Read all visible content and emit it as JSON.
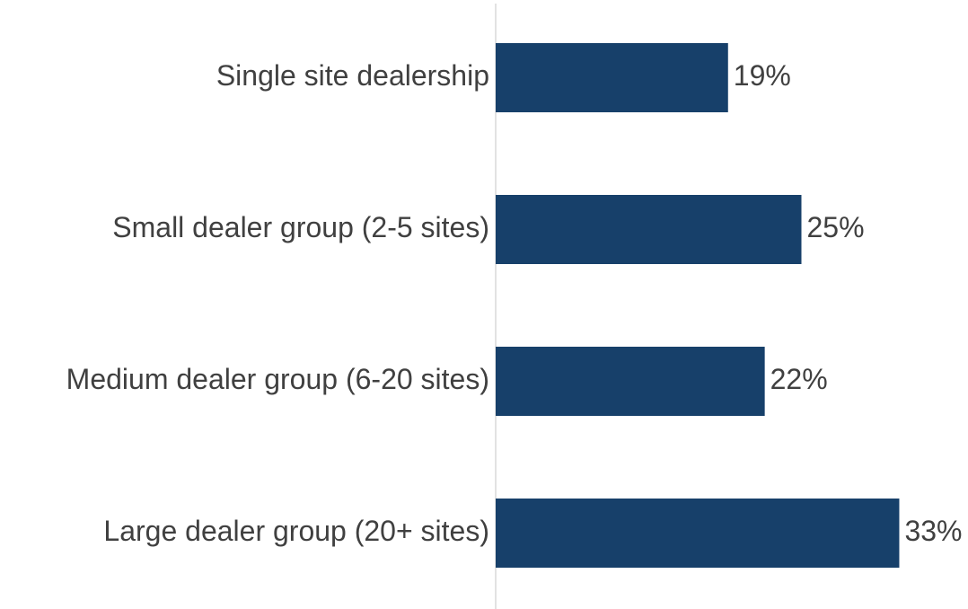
{
  "chart_data": {
    "type": "bar",
    "orientation": "horizontal",
    "categories": [
      "Single site dealership",
      "Small dealer group (2-5 sites)",
      "Medium dealer group (6-20 sites)",
      "Large dealer group (20+ sites)"
    ],
    "values": [
      19,
      25,
      22,
      33
    ],
    "value_labels": [
      "19%",
      "25%",
      "22%",
      "33%"
    ],
    "color": "#17406a"
  }
}
